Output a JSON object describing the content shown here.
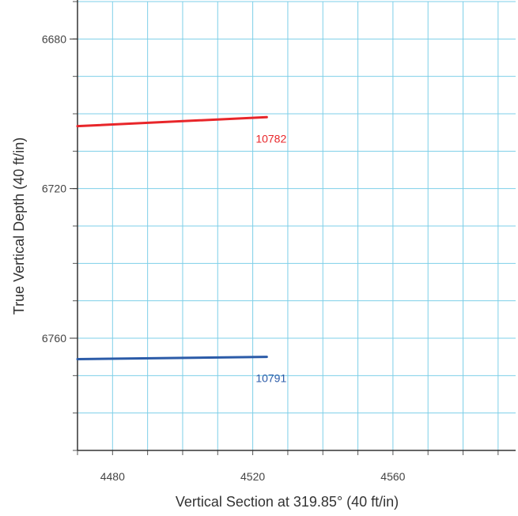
{
  "chart_data": {
    "type": "line",
    "xlabel": "Vertical Section at 319.85° (40 ft/in)",
    "ylabel": "True Vertical Depth (40 ft/in)",
    "xlim": [
      4470,
      4595
    ],
    "ylim": [
      6670,
      6790
    ],
    "y_inverted": true,
    "grid": true,
    "grid_color": "#7ecfe8",
    "x_major_ticks": [
      4480,
      4520,
      4560
    ],
    "y_major_ticks": [
      6680,
      6720,
      6760
    ],
    "x_minor_step": 10,
    "y_minor_step": 10,
    "series": [
      {
        "name": "10782",
        "color": "#e8262a",
        "x": [
          4470,
          4524
        ],
        "y": [
          6703.3,
          6700.9
        ]
      },
      {
        "name": "10791",
        "color": "#2b5ba8",
        "x": [
          4470,
          4524
        ],
        "y": [
          6765.6,
          6765.0
        ]
      }
    ]
  }
}
